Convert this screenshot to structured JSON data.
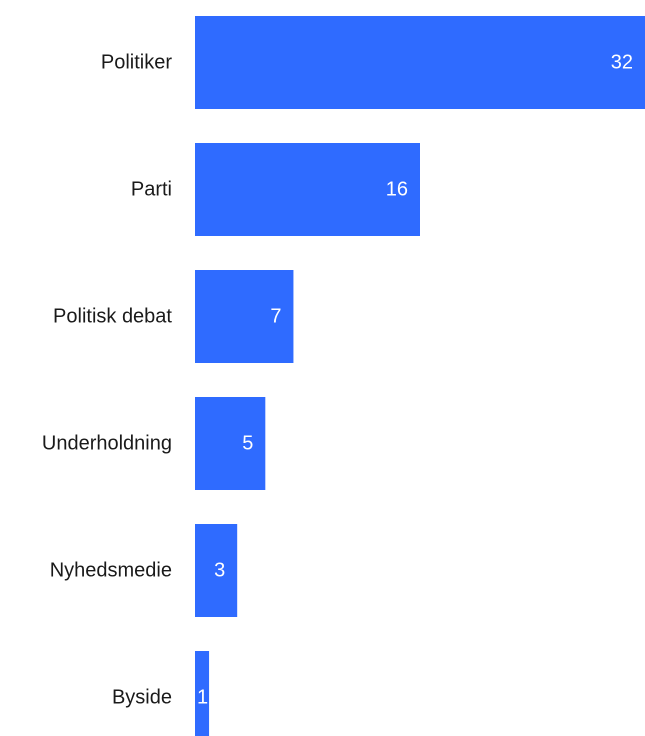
{
  "chart_data": {
    "type": "bar",
    "orientation": "horizontal",
    "categories": [
      "Politiker",
      "Parti",
      "Politisk debat",
      "Underholdning",
      "Nyhedsmedie",
      "Byside"
    ],
    "values": [
      32,
      16,
      7,
      5,
      3,
      1
    ],
    "title": "",
    "xlabel": "",
    "ylabel": "",
    "xlim": [
      0,
      32
    ],
    "grid": false,
    "legend": "none",
    "data_labels": true,
    "bar_color": "#2f6bff",
    "label_color": "#ffffff",
    "category_color": "#1a1a1a"
  }
}
